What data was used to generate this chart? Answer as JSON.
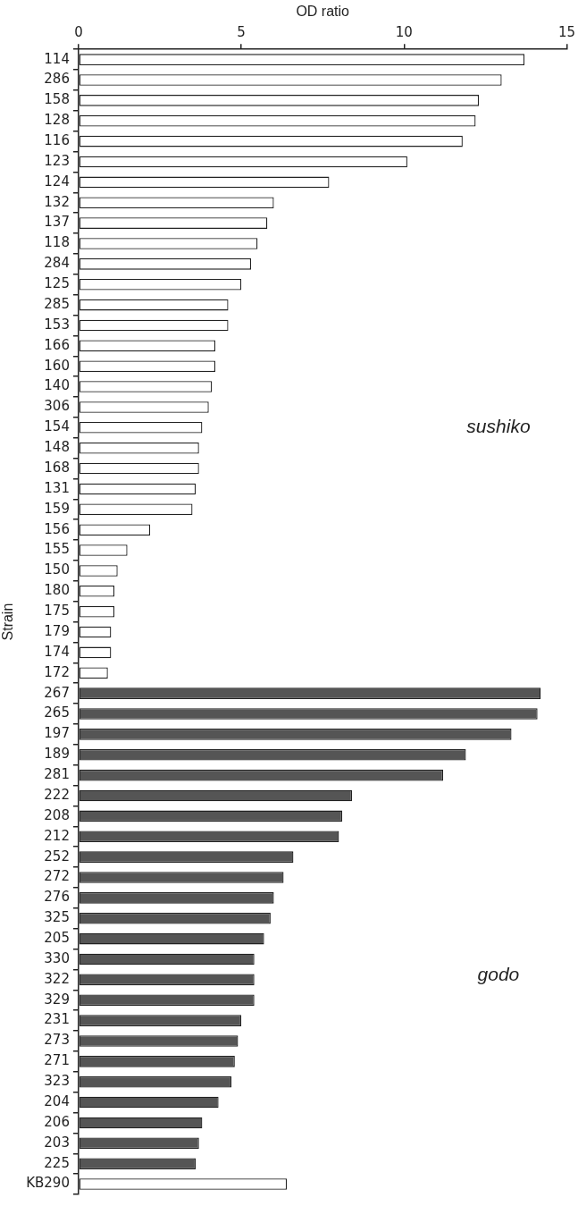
{
  "chart_data": {
    "type": "bar",
    "orientation": "horizontal",
    "xlabel": "OD ratio",
    "ylabel": "Strain",
    "categories": [
      "114",
      "286",
      "158",
      "128",
      "116",
      "123",
      "124",
      "132",
      "137",
      "118",
      "284",
      "125",
      "285",
      "153",
      "166",
      "160",
      "140",
      "306",
      "154",
      "148",
      "168",
      "131",
      "159",
      "156",
      "155",
      "150",
      "180",
      "175",
      "179",
      "174",
      "172",
      "267",
      "265",
      "197",
      "189",
      "281",
      "222",
      "208",
      "212",
      "252",
      "272",
      "276",
      "325",
      "205",
      "330",
      "322",
      "329",
      "231",
      "273",
      "271",
      "323",
      "204",
      "206",
      "203",
      "225",
      "KB290"
    ],
    "values": [
      13.7,
      13.0,
      12.3,
      12.2,
      11.8,
      10.1,
      7.7,
      6.0,
      5.8,
      5.5,
      5.3,
      5.0,
      4.6,
      4.6,
      4.2,
      4.2,
      4.1,
      4.0,
      3.8,
      3.7,
      3.7,
      3.6,
      3.5,
      2.2,
      1.5,
      1.2,
      1.1,
      1.1,
      1.0,
      1.0,
      0.9,
      14.2,
      14.1,
      13.3,
      11.9,
      11.2,
      8.4,
      8.1,
      8.0,
      6.6,
      6.3,
      6.0,
      5.9,
      5.7,
      5.4,
      5.4,
      5.4,
      5.0,
      4.9,
      4.8,
      4.7,
      4.3,
      3.8,
      3.7,
      3.6,
      6.4
    ],
    "colors": [
      "#ffffff",
      "#ffffff",
      "#ffffff",
      "#ffffff",
      "#ffffff",
      "#ffffff",
      "#ffffff",
      "#ffffff",
      "#ffffff",
      "#ffffff",
      "#ffffff",
      "#ffffff",
      "#ffffff",
      "#ffffff",
      "#ffffff",
      "#ffffff",
      "#ffffff",
      "#ffffff",
      "#ffffff",
      "#ffffff",
      "#ffffff",
      "#ffffff",
      "#ffffff",
      "#ffffff",
      "#ffffff",
      "#ffffff",
      "#ffffff",
      "#ffffff",
      "#ffffff",
      "#ffffff",
      "#ffffff",
      "#555555",
      "#555555",
      "#555555",
      "#555555",
      "#555555",
      "#555555",
      "#555555",
      "#555555",
      "#555555",
      "#555555",
      "#555555",
      "#555555",
      "#555555",
      "#555555",
      "#555555",
      "#555555",
      "#555555",
      "#555555",
      "#555555",
      "#555555",
      "#555555",
      "#555555",
      "#555555",
      "#555555",
      "#ffffff"
    ],
    "xlim": [
      0,
      15
    ],
    "xticks": [
      0,
      5,
      10,
      15
    ],
    "grid": false,
    "legend": false,
    "annotations": [
      "sushiko",
      "godo"
    ]
  }
}
